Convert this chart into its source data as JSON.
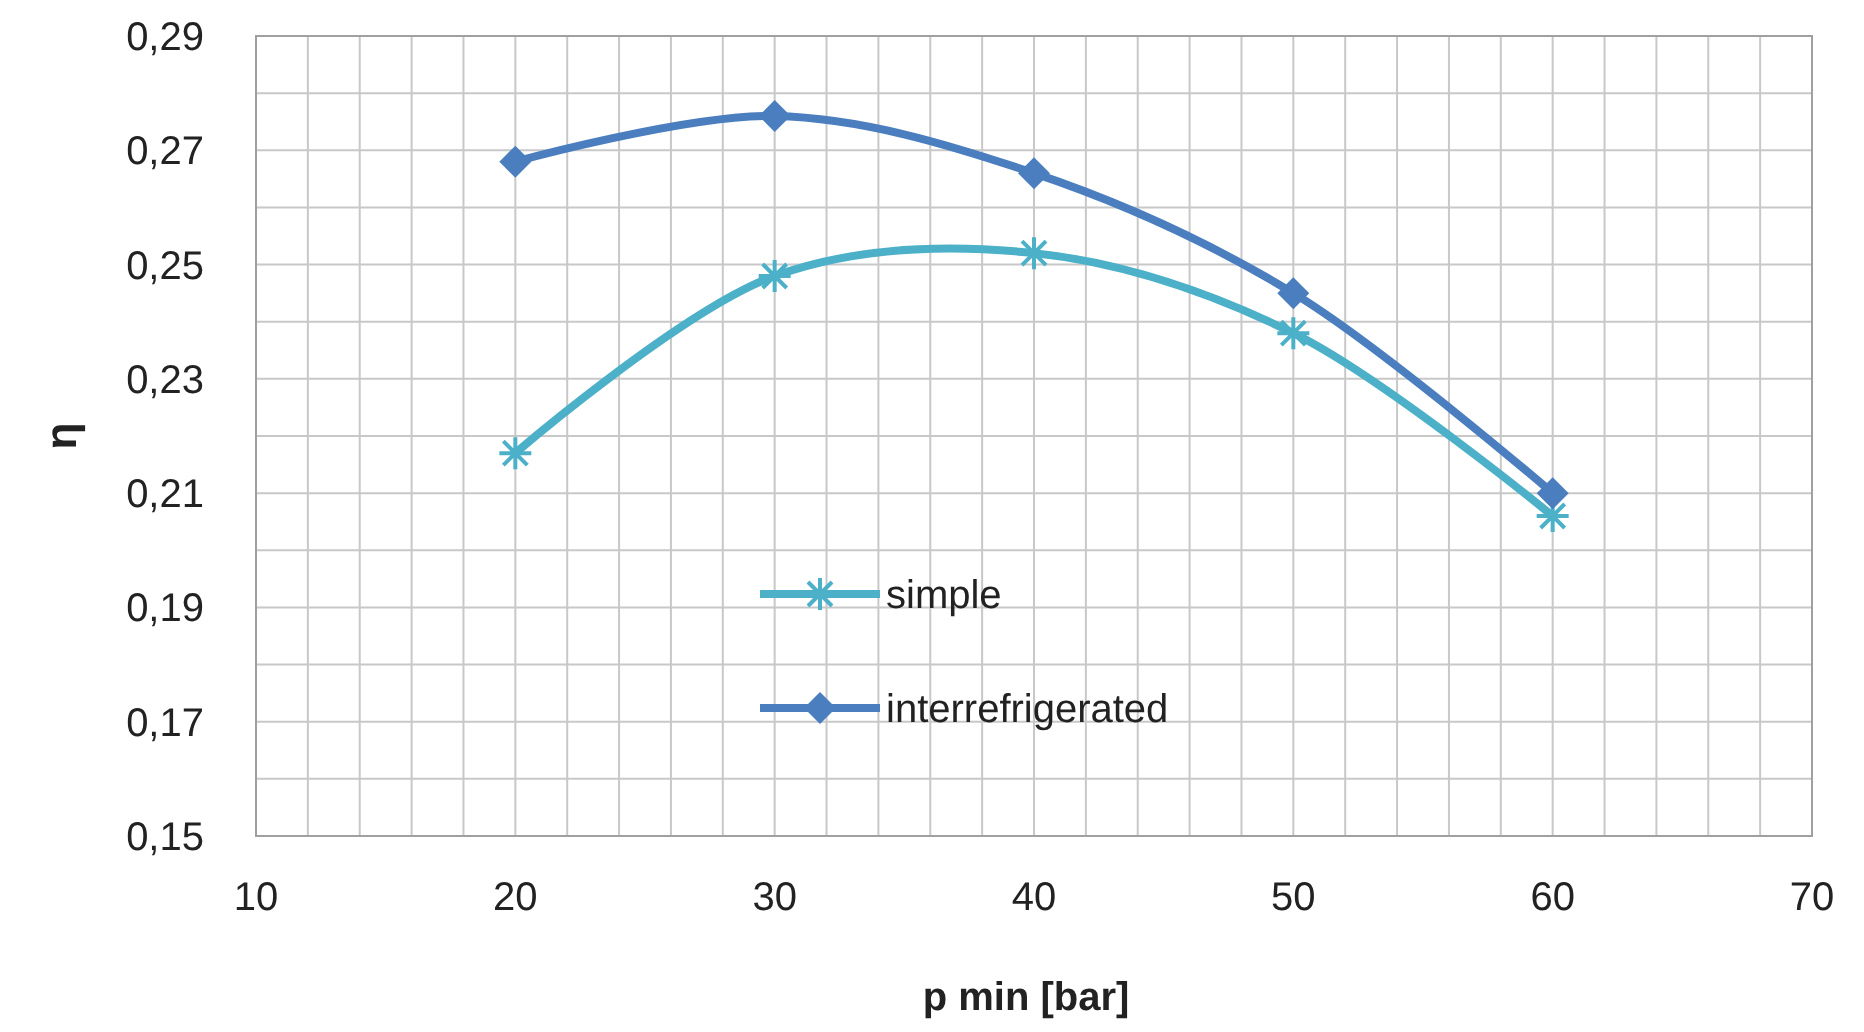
{
  "chart_data": {
    "type": "line",
    "xlabel": "p min [bar]",
    "ylabel": "η",
    "x": [
      20,
      30,
      40,
      50,
      60
    ],
    "series": [
      {
        "name": "simple",
        "color": "#4bb0c8",
        "marker": "cross",
        "values": [
          0.217,
          0.248,
          0.252,
          0.238,
          0.206
        ]
      },
      {
        "name": "interrefrigerated",
        "color": "#4a7ebf",
        "marker": "diamond",
        "values": [
          0.268,
          0.276,
          0.266,
          0.245,
          0.21
        ]
      }
    ],
    "xlim": [
      10,
      70
    ],
    "xticks": [
      10,
      {
        "value": 12,
        "label": null
      },
      {
        "value": 14,
        "label": null
      },
      {
        "value": 16,
        "label": null
      },
      {
        "value": 18,
        "label": null
      },
      20,
      {
        "value": 22,
        "label": null
      },
      {
        "value": 24,
        "label": null
      },
      {
        "value": 26,
        "label": null
      },
      {
        "value": 28,
        "label": null
      },
      30,
      {
        "value": 32,
        "label": null
      },
      {
        "value": 34,
        "label": null
      },
      {
        "value": 36,
        "label": null
      },
      {
        "value": 38,
        "label": null
      },
      40,
      {
        "value": 42,
        "label": null
      },
      {
        "value": 44,
        "label": null
      },
      {
        "value": 46,
        "label": null
      },
      {
        "value": 48,
        "label": null
      },
      50,
      {
        "value": 52,
        "label": null
      },
      {
        "value": 54,
        "label": null
      },
      {
        "value": 56,
        "label": null
      },
      {
        "value": 58,
        "label": null
      },
      60,
      {
        "value": 62,
        "label": null
      },
      {
        "value": 64,
        "label": null
      },
      {
        "value": 66,
        "label": null
      },
      {
        "value": 68,
        "label": null
      },
      70
    ],
    "ylim": [
      0.15,
      0.29
    ],
    "yticks": [
      {
        "value": 0.15,
        "label": "0,15"
      },
      {
        "value": 0.16,
        "label": null
      },
      {
        "value": 0.17,
        "label": "0,17"
      },
      {
        "value": 0.18,
        "label": null
      },
      {
        "value": 0.19,
        "label": "0,19"
      },
      {
        "value": 0.2,
        "label": null
      },
      {
        "value": 0.21,
        "label": "0,21"
      },
      {
        "value": 0.22,
        "label": null
      },
      {
        "value": 0.23,
        "label": "0,23"
      },
      {
        "value": 0.24,
        "label": null
      },
      {
        "value": 0.25,
        "label": "0,25"
      },
      {
        "value": 0.26,
        "label": null
      },
      {
        "value": 0.27,
        "label": "0,27"
      },
      {
        "value": 0.28,
        "label": null
      },
      {
        "value": 0.29,
        "label": "0,29"
      }
    ],
    "grid": true,
    "legend": "center"
  }
}
